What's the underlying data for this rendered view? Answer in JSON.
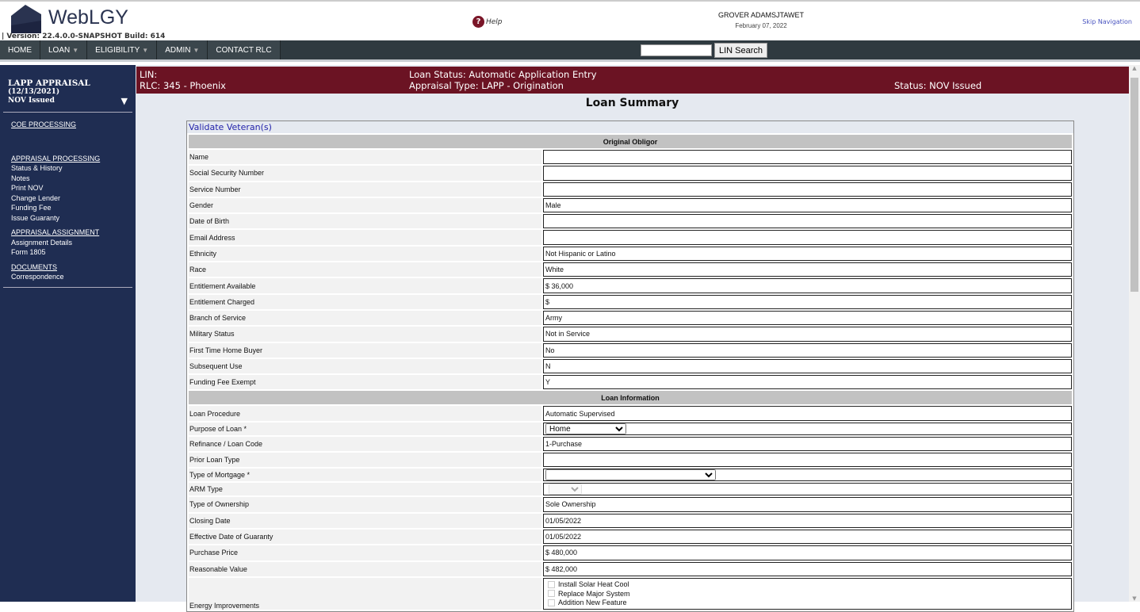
{
  "header": {
    "brand": "WebLGY",
    "version": "| Version: 22.4.0.0-SNAPSHOT Build: 614",
    "help": "Help",
    "user": "GROVER ADAMSJTAWET",
    "date": "February 07, 2022",
    "skip": "Skip Navigation"
  },
  "nav": {
    "items": [
      {
        "label": "HOME"
      },
      {
        "label": "LOAN",
        "caret": "▼"
      },
      {
        "label": "ELIGIBILITY",
        "caret": "▼"
      },
      {
        "label": "ADMIN",
        "caret": "▼"
      },
      {
        "label": "CONTACT RLC"
      }
    ],
    "lin_search": "LIN Search"
  },
  "sidebar": {
    "title": "LAPP APPRAISAL",
    "date": "(12/13/2021)",
    "status": "NOV Issued",
    "coe": "COE PROCESSING",
    "appraisal_processing": "APPRAISAL PROCESSING",
    "ap_items": [
      "Status & History",
      "Notes",
      "Print NOV",
      "Change Lender",
      "Funding Fee",
      "Issue Guaranty"
    ],
    "appraisal_assignment": "APPRAISAL ASSIGNMENT",
    "aa_items": [
      "Assignment Details",
      "Form 1805"
    ],
    "documents": "DOCUMENTS",
    "doc_items": [
      "Correspondence"
    ]
  },
  "band": {
    "lin": "LIN:",
    "rlc": "RLC: 345 - Phoenix",
    "loan_status": "Loan Status: Automatic Application Entry",
    "appraisal_type": "Appraisal Type: LAPP - Origination",
    "status": "Status: NOV Issued"
  },
  "page_title": "Loan Summary",
  "validate": "Validate Veteran(s)",
  "obligor": {
    "header": "Original Obligor",
    "rows": [
      [
        "Name",
        ""
      ],
      [
        "Social Security Number",
        ""
      ],
      [
        "Service Number",
        ""
      ],
      [
        "Gender",
        "Male"
      ],
      [
        "Date of Birth",
        ""
      ],
      [
        "Email Address",
        ""
      ],
      [
        "Ethnicity",
        "Not Hispanic or Latino"
      ],
      [
        "Race",
        "White"
      ],
      [
        "Entitlement Available",
        "$ 36,000"
      ],
      [
        "Entitlement Charged",
        "$"
      ],
      [
        "Branch of Service",
        "Army"
      ],
      [
        "Military Status",
        "Not in Service"
      ],
      [
        "First Time Home Buyer",
        " No"
      ],
      [
        "Subsequent Use",
        " N"
      ],
      [
        "Funding Fee Exempt",
        " Y"
      ]
    ]
  },
  "loan": {
    "header": "Loan Information",
    "procedure": [
      "Loan Procedure",
      " Automatic Supervised"
    ],
    "purpose": [
      "Purpose of Loan *",
      "Home"
    ],
    "refi": [
      "Refinance / Loan Code",
      " 1-Purchase"
    ],
    "prior": [
      "Prior Loan Type",
      ""
    ],
    "mortgage": [
      "Type of Mortgage *",
      ""
    ],
    "arm": [
      "ARM Type",
      ""
    ],
    "ownership": [
      "Type of Ownership",
      " Sole Ownership"
    ],
    "closing": [
      "Closing Date",
      " 01/05/2022"
    ],
    "effective": [
      "Effective Date of Guaranty",
      " 01/05/2022"
    ],
    "purchase": [
      "Purchase Price",
      "$ 480,000"
    ],
    "reasonable": [
      "Reasonable Value",
      "$ 482,000"
    ],
    "energy": {
      "label": "Energy Improvements",
      "options": [
        "Install Solar Heat Cool",
        "Replace Major System",
        "Addition New Feature"
      ]
    }
  },
  "colors": {
    "nav": "#2f3a40",
    "sidebar": "#1f2d52",
    "band": "#6b1323"
  }
}
